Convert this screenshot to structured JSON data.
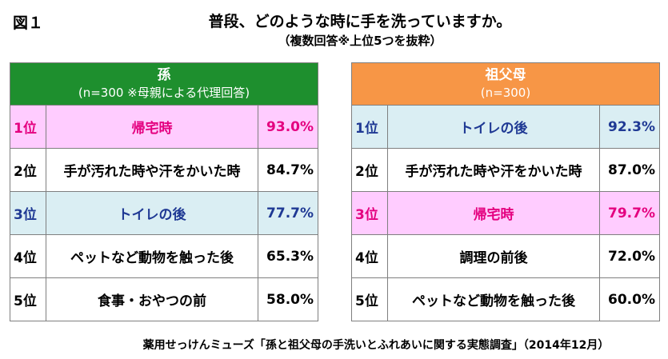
{
  "figure_label": "図１",
  "title": "普段、どのような時に手を洗っていますか。",
  "subtitle": "（複数回答※上位5つを抜粋）",
  "source": "薬用せっけんミューズ「孫と祖父母の手洗いとふれあいに関する実態調査」（2014年12月）",
  "colors": {
    "grandchild_header": "#1e8f2e",
    "grandparent_header": "#f79646",
    "pink_row": "#ffccff",
    "pink_text": "#e4007f",
    "blue_row": "#daeef3",
    "blue_text": "#1f3994"
  },
  "chart_data": {
    "type": "table",
    "tables": [
      {
        "header": "孫",
        "subheader": "(n=300  ※母親による代理回答)",
        "rows": [
          {
            "rank": "1位",
            "item": "帰宅時",
            "value": "93.0%",
            "highlight": "pink"
          },
          {
            "rank": "2位",
            "item": "手が汚れた時や汗をかいた時",
            "value": "84.7%",
            "highlight": "none"
          },
          {
            "rank": "3位",
            "item": "トイレの後",
            "value": "77.7%",
            "highlight": "blue"
          },
          {
            "rank": "4位",
            "item": "ペットなど動物を触った後",
            "value": "65.3%",
            "highlight": "none"
          },
          {
            "rank": "5位",
            "item": "食事・おやつの前",
            "value": "58.0%",
            "highlight": "none"
          }
        ]
      },
      {
        "header": "祖父母",
        "subheader": "(n=300)",
        "rows": [
          {
            "rank": "1位",
            "item": "トイレの後",
            "value": "92.3%",
            "highlight": "blue"
          },
          {
            "rank": "2位",
            "item": "手が汚れた時や汗をかいた時",
            "value": "87.0%",
            "highlight": "none"
          },
          {
            "rank": "3位",
            "item": "帰宅時",
            "value": "79.7%",
            "highlight": "pink"
          },
          {
            "rank": "4位",
            "item": "調理の前後",
            "value": "72.0%",
            "highlight": "none"
          },
          {
            "rank": "5位",
            "item": "ペットなど動物を触った後",
            "value": "60.0%",
            "highlight": "none"
          }
        ]
      }
    ]
  }
}
